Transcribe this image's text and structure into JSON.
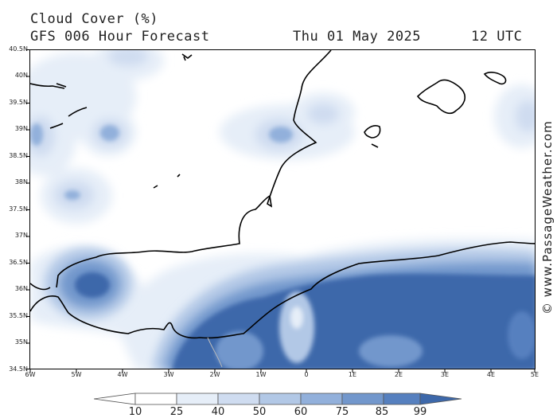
{
  "header": {
    "title": "Cloud Cover (%)",
    "subtitle": "GFS 006 Hour Forecast",
    "date": "Thu 01 May 2025",
    "time": "12 UTC"
  },
  "watermark": "© www.PassageWeather.com",
  "axes": {
    "lat_labels": [
      "40.5N",
      "40N",
      "39.5N",
      "39N",
      "38.5N",
      "38N",
      "37.5N",
      "37N",
      "36.5N",
      "36N",
      "35.5N",
      "35N",
      "34.5N"
    ],
    "lon_labels": [
      "6W",
      "5W",
      "4W",
      "3W",
      "2W",
      "1W",
      "0",
      "1E",
      "2E",
      "3E",
      "4E",
      "5E"
    ]
  },
  "colorbar": {
    "labels": [
      "10",
      "25",
      "40",
      "50",
      "60",
      "75",
      "85",
      "99"
    ],
    "colors": [
      "#ffffff",
      "#e6eef8",
      "#cfdcf0",
      "#b2c8e6",
      "#92b0db",
      "#7297cc",
      "#5680bf",
      "#3d68aa"
    ]
  },
  "colors": {
    "coast": "#000000",
    "cloud_light": "#e6eef8",
    "cloud_mid": "#b2c8e6",
    "cloud_dark": "#3d68aa"
  }
}
